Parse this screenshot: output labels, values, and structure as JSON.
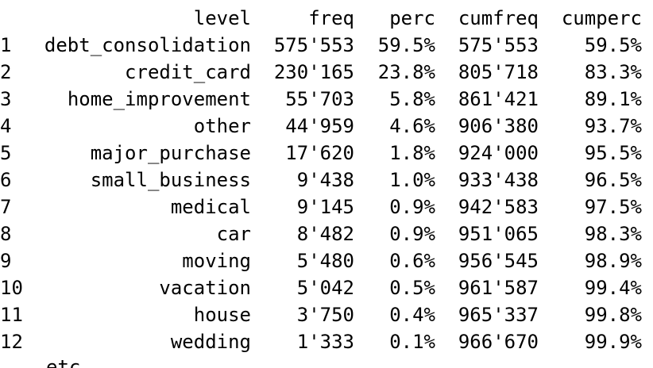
{
  "table": {
    "headers": {
      "level": "level",
      "freq": "freq",
      "perc": "perc",
      "cumfreq": "cumfreq",
      "cumperc": "cumperc"
    },
    "rows": [
      {
        "idx": "1",
        "level": "debt_consolidation",
        "freq": "575'553",
        "perc": "59.5%",
        "cumfreq": "575'553",
        "cumperc": "59.5%"
      },
      {
        "idx": "2",
        "level": "credit_card",
        "freq": "230'165",
        "perc": "23.8%",
        "cumfreq": "805'718",
        "cumperc": "83.3%"
      },
      {
        "idx": "3",
        "level": "home_improvement",
        "freq": "55'703",
        "perc": "5.8%",
        "cumfreq": "861'421",
        "cumperc": "89.1%"
      },
      {
        "idx": "4",
        "level": "other",
        "freq": "44'959",
        "perc": "4.6%",
        "cumfreq": "906'380",
        "cumperc": "93.7%"
      },
      {
        "idx": "5",
        "level": "major_purchase",
        "freq": "17'620",
        "perc": "1.8%",
        "cumfreq": "924'000",
        "cumperc": "95.5%"
      },
      {
        "idx": "6",
        "level": "small_business",
        "freq": "9'438",
        "perc": "1.0%",
        "cumfreq": "933'438",
        "cumperc": "96.5%"
      },
      {
        "idx": "7",
        "level": "medical",
        "freq": "9'145",
        "perc": "0.9%",
        "cumfreq": "942'583",
        "cumperc": "97.5%"
      },
      {
        "idx": "8",
        "level": "car",
        "freq": "8'482",
        "perc": "0.9%",
        "cumfreq": "951'065",
        "cumperc": "98.3%"
      },
      {
        "idx": "9",
        "level": "moving",
        "freq": "5'480",
        "perc": "0.6%",
        "cumfreq": "956'545",
        "cumperc": "98.9%"
      },
      {
        "idx": "10",
        "level": "vacation",
        "freq": "5'042",
        "perc": "0.5%",
        "cumfreq": "961'587",
        "cumperc": "99.4%"
      },
      {
        "idx": "11",
        "level": "house",
        "freq": "3'750",
        "perc": "0.4%",
        "cumfreq": "965'337",
        "cumperc": "99.8%"
      },
      {
        "idx": "12",
        "level": "wedding",
        "freq": "1'333",
        "perc": "0.1%",
        "cumfreq": "966'670",
        "cumperc": "99.9%"
      }
    ],
    "footer_text": "etc."
  }
}
